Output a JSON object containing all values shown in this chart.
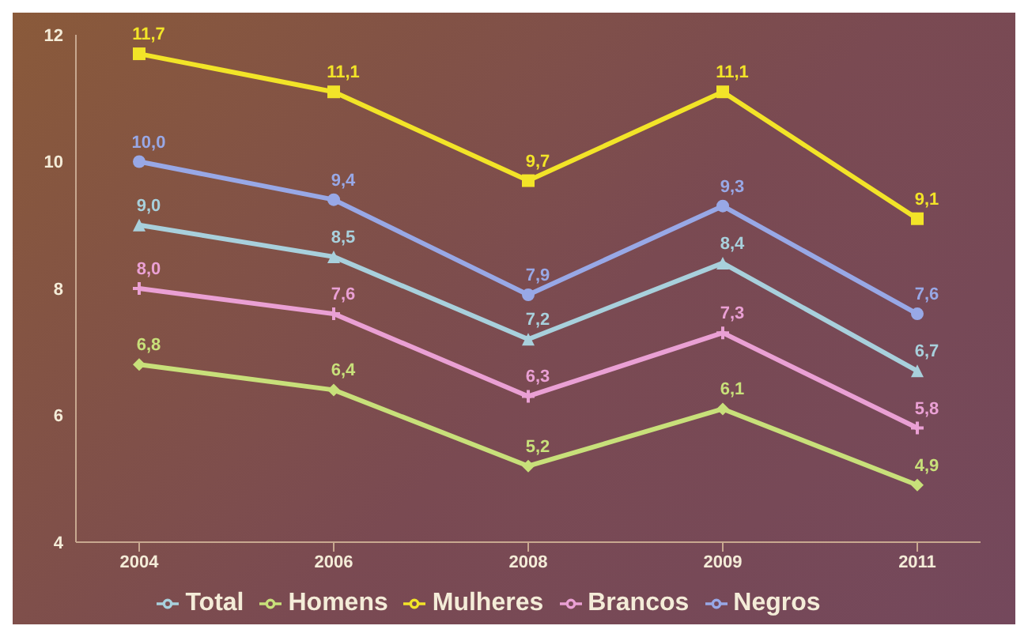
{
  "chart_data": {
    "type": "line",
    "categories": [
      "2004",
      "2006",
      "2008",
      "2009",
      "2011"
    ],
    "series": [
      {
        "name": "Total",
        "color": "#a8d0dc",
        "marker": "triangle",
        "values": [
          9.0,
          8.5,
          7.2,
          8.4,
          6.7
        ],
        "value_labels": [
          "9,0",
          "8,5",
          "7,2",
          "8,4",
          "6,7"
        ]
      },
      {
        "name": "Homens",
        "color": "#c8e07a",
        "marker": "diamond",
        "values": [
          6.8,
          6.4,
          5.2,
          6.1,
          4.9
        ],
        "value_labels": [
          "6,8",
          "6,4",
          "5,2",
          "6,1",
          "4,9"
        ]
      },
      {
        "name": "Mulheres",
        "color": "#f2e428",
        "marker": "square",
        "values": [
          11.7,
          11.1,
          9.7,
          11.1,
          9.1
        ],
        "value_labels": [
          "11,7",
          "11,1",
          "9,7",
          "11,1",
          "9,1"
        ]
      },
      {
        "name": "Brancos",
        "color": "#eaa0d4",
        "marker": "cross",
        "values": [
          8.0,
          7.6,
          6.3,
          7.3,
          5.8
        ],
        "value_labels": [
          "8,0",
          "7,6",
          "6,3",
          "7,3",
          "5,8"
        ]
      },
      {
        "name": "Negros",
        "color": "#98a8e6",
        "marker": "circle",
        "values": [
          10.0,
          9.4,
          7.9,
          9.3,
          7.6
        ],
        "value_labels": [
          "10,0",
          "9,4",
          "7,9",
          "9,3",
          "7,6"
        ]
      }
    ],
    "ylim": [
      4,
      12
    ],
    "yticks": [
      4,
      6,
      8,
      10,
      12
    ],
    "grid": false,
    "legend": "bottom",
    "line_style": "solid"
  }
}
